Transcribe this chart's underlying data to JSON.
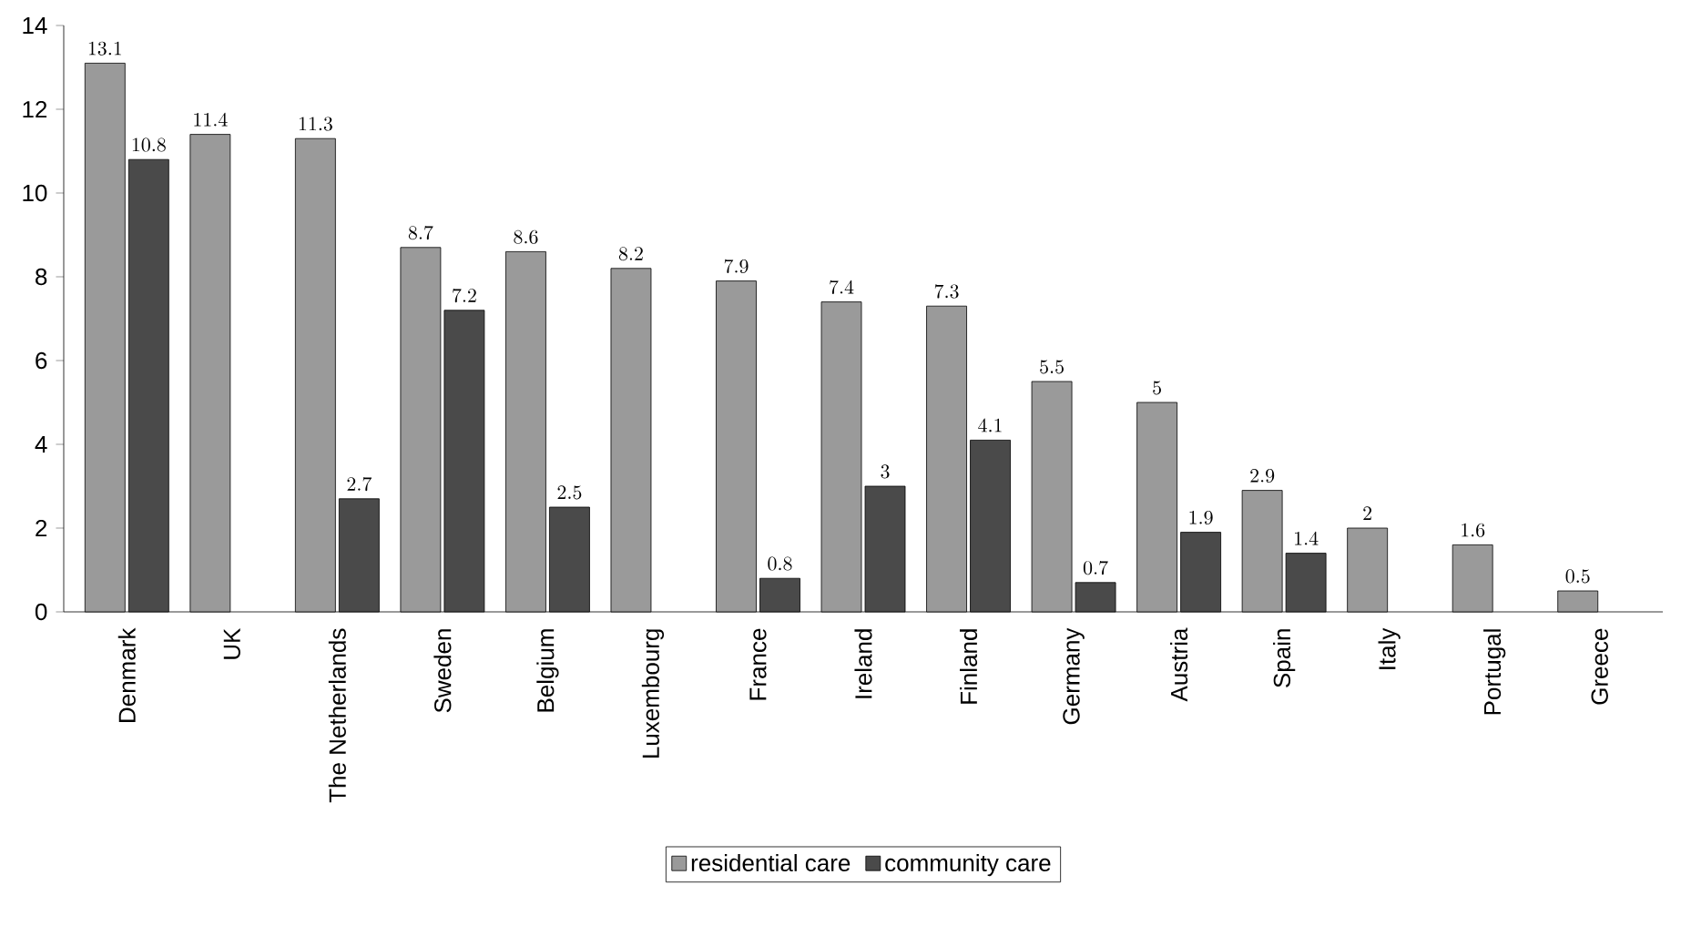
{
  "chart_data": {
    "type": "bar",
    "categories": [
      "Denmark",
      "UK",
      "The Netherlands",
      "Sweden",
      "Belgium",
      "Luxembourg",
      "France",
      "Ireland",
      "Finland",
      "Germany",
      "Austria",
      "Spain",
      "Italy",
      "Portugal",
      "Greece"
    ],
    "series": [
      {
        "name": "residential care",
        "color": "#9a9a9a",
        "values": [
          13.1,
          11.4,
          11.3,
          8.7,
          8.6,
          8.2,
          7.9,
          7.4,
          7.3,
          5.5,
          5,
          2.9,
          2,
          1.6,
          0.5
        ]
      },
      {
        "name": "community care",
        "color": "#4a4a4a",
        "values": [
          10.8,
          null,
          2.7,
          7.2,
          2.5,
          null,
          0.8,
          3,
          4.1,
          0.7,
          1.9,
          1.4,
          null,
          null,
          null
        ]
      }
    ],
    "ylim": [
      0,
      14
    ],
    "yticks": [
      0,
      2,
      4,
      6,
      8,
      10,
      12,
      14
    ],
    "data_labels": true,
    "legend": "bottom",
    "grid": false
  }
}
